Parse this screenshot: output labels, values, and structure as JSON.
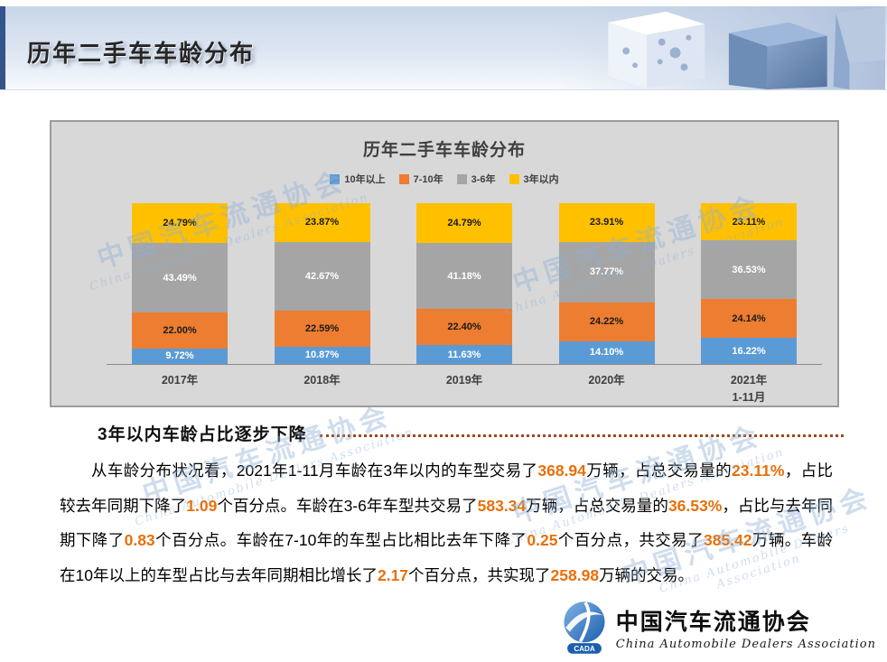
{
  "page": {
    "title": "历年二手车车龄分布"
  },
  "chart": {
    "title": "历年二手车车龄分布",
    "chart_data": {
      "type": "bar",
      "stacked": true,
      "title": "历年二手车车龄分布",
      "xlabel": "",
      "ylabel": "",
      "ylim": [
        0,
        100
      ],
      "value_suffix": "%",
      "legend_position": "top",
      "grid": false,
      "categories": [
        "2017年",
        "2018年",
        "2019年",
        "2020年",
        "2021年\n1-11月"
      ],
      "series": [
        {
          "name": "10年以上",
          "color": "#5B9BD5",
          "label_color": "#FFFFFF",
          "values": [
            9.72,
            10.87,
            11.63,
            14.1,
            16.22
          ],
          "labels": [
            "9.72%",
            "10.87%",
            "11.63%",
            "14.10%",
            "16.22%"
          ]
        },
        {
          "name": "7-10年",
          "color": "#ED7D31",
          "label_color": "#1A1A1A",
          "values": [
            22.0,
            22.59,
            22.4,
            24.22,
            24.14
          ],
          "labels": [
            "22.00%",
            "22.59%",
            "22.40%",
            "24.22%",
            "24.14%"
          ]
        },
        {
          "name": "3-6年",
          "color": "#A5A5A5",
          "label_color": "#FFFFFF",
          "values": [
            43.49,
            42.67,
            41.18,
            37.77,
            36.53
          ],
          "labels": [
            "43.49%",
            "42.67%",
            "41.18%",
            "37.77%",
            "36.53%"
          ]
        },
        {
          "name": "3年以内",
          "color": "#FFC000",
          "label_color": "#1A1A1A",
          "values": [
            24.79,
            23.87,
            24.79,
            23.91,
            23.11
          ],
          "labels": [
            "24.79%",
            "23.87%",
            "24.79%",
            "23.91%",
            "23.11%"
          ]
        }
      ]
    }
  },
  "analysis": {
    "heading": "3年以内车龄占比逐步下降",
    "highlight_color": "#E8700A",
    "segments": [
      {
        "t": "从车龄分布状况看，2021年1-11月车龄在3年以内的车型交易了",
        "hl": false
      },
      {
        "t": "368.94",
        "hl": true
      },
      {
        "t": "万辆，占总交易量的",
        "hl": false
      },
      {
        "t": "23.11%",
        "hl": true
      },
      {
        "t": "，占比较去年同期下降了",
        "hl": false
      },
      {
        "t": "1.09",
        "hl": true
      },
      {
        "t": "个百分点。车龄在3-6年车型共交易了",
        "hl": false
      },
      {
        "t": "583.34",
        "hl": true
      },
      {
        "t": "万辆，占总交易量的",
        "hl": false
      },
      {
        "t": "36.53%",
        "hl": true
      },
      {
        "t": "，占比与去年同期下降了",
        "hl": false
      },
      {
        "t": "0.83",
        "hl": true
      },
      {
        "t": "个百分点。车龄在7-10年的车型占比相比去年下降了",
        "hl": false
      },
      {
        "t": "0.25",
        "hl": true
      },
      {
        "t": "个百分点，共交易了",
        "hl": false
      },
      {
        "t": "385.42",
        "hl": true
      },
      {
        "t": "万辆。车龄在10年以上的车型占比与去年同期相比增长了",
        "hl": false
      },
      {
        "t": "2.17",
        "hl": true
      },
      {
        "t": "个百分点，共实现了",
        "hl": false
      },
      {
        "t": "258.98",
        "hl": true
      },
      {
        "t": "万辆的交易。",
        "hl": false
      }
    ]
  },
  "footer": {
    "org_cn": "中国汽车流通协会",
    "org_en": "China Automobile Dealers Association",
    "logo_text": "CADA"
  },
  "watermark": {
    "cn": "中国汽车流通协会",
    "en": "China Automobile Dealers Association"
  }
}
